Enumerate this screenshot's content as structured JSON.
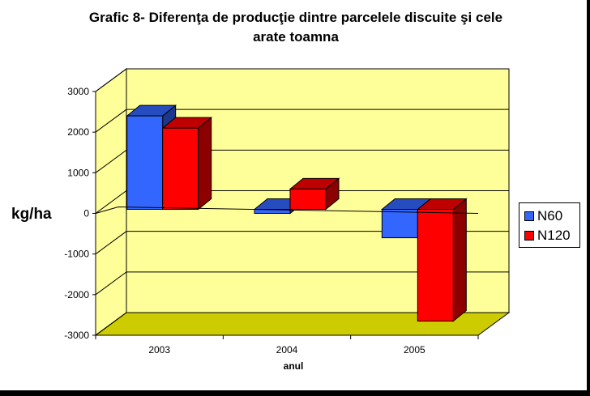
{
  "chart_data": {
    "type": "bar",
    "title_line1": "Grafic 8- Diferenţa de producţie dintre parcelele discuite şi cele",
    "title_line2": "arate toamna",
    "xlabel": "anul",
    "ylabel": "kg/ha",
    "categories": [
      "2003",
      "2004",
      "2005"
    ],
    "series": [
      {
        "name": "N60",
        "values": [
          2300,
          -100,
          -700
        ],
        "color": "#3366ff"
      },
      {
        "name": "N120",
        "values": [
          2000,
          500,
          -2750
        ],
        "color": "#ff0000"
      }
    ],
    "ylim": [
      -3000,
      3000
    ],
    "yticks": [
      "3000",
      "2000",
      "1000",
      "0",
      "-1000",
      "-2000",
      "-3000"
    ],
    "grid": true,
    "legend_position": "right",
    "colors": {
      "wall": "#ffff99",
      "floor": "#cccc00"
    }
  }
}
